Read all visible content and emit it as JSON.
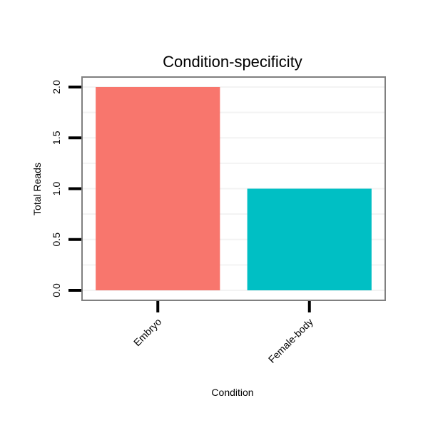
{
  "chart_data": {
    "type": "bar",
    "title": "Condition-specificity",
    "xlabel": "Condition",
    "ylabel": "Total Reads",
    "categories": [
      "Embryo",
      "Female-body"
    ],
    "values": [
      2,
      1
    ],
    "colors": [
      "#F8766D",
      "#00BFC4"
    ],
    "ylim": [
      0,
      2
    ],
    "yticks": [
      "0.0",
      "0.5",
      "1.0",
      "1.5",
      "2.0"
    ],
    "grid": true
  }
}
